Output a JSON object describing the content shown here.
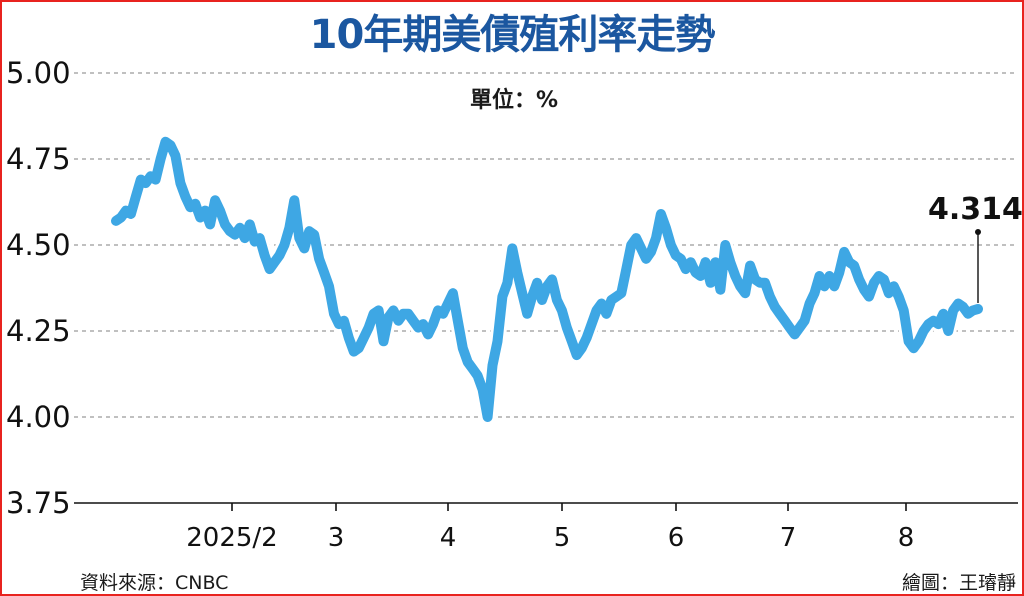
{
  "title": "10年期美債殖利率走勢",
  "unit_label": "單位：%",
  "source": "資料來源：CNBC",
  "credit": "繪圖：王璿靜",
  "colors": {
    "line": "#3ea7e4",
    "border": "#e8231f",
    "title": "#1b57a0",
    "grid": "#9a9a9a"
  },
  "chart_data": {
    "type": "line",
    "title": "10年期美債殖利率走勢",
    "ylabel": "",
    "xlabel": "",
    "ylim": [
      3.75,
      5.0
    ],
    "y_ticks": [
      "5.00",
      "4.75",
      "4.50",
      "4.25",
      "4.00",
      "3.75"
    ],
    "x_ticks": [
      "2025/2",
      "3",
      "4",
      "5",
      "6",
      "7",
      "8"
    ],
    "grid": true,
    "annotation": {
      "label": "4.314",
      "value": 4.314
    },
    "series": [
      {
        "values": [
          4.57,
          4.58,
          4.6,
          4.59,
          4.64,
          4.69,
          4.68,
          4.7,
          4.69,
          4.75,
          4.8,
          4.79,
          4.76,
          4.68,
          4.64,
          4.61,
          4.62,
          4.58,
          4.6,
          4.56,
          4.63,
          4.6,
          4.56,
          4.54,
          4.53,
          4.55,
          4.52,
          4.56,
          4.51,
          4.52,
          4.47,
          4.43,
          4.45,
          4.47,
          4.5,
          4.55,
          4.63,
          4.52,
          4.49,
          4.54,
          4.53,
          4.46,
          4.42,
          4.38,
          4.3,
          4.27,
          4.28,
          4.23,
          4.19,
          4.2,
          4.23,
          4.26,
          4.3,
          4.31,
          4.22,
          4.29,
          4.31,
          4.28,
          4.3,
          4.3,
          4.28,
          4.26,
          4.27,
          4.24,
          4.27,
          4.31,
          4.3,
          4.33,
          4.36,
          4.28,
          4.2,
          4.16,
          4.14,
          4.12,
          4.08,
          4.0,
          4.15,
          4.22,
          4.35,
          4.39,
          4.49,
          4.42,
          4.36,
          4.3,
          4.35,
          4.39,
          4.34,
          4.38,
          4.4,
          4.34,
          4.31,
          4.26,
          4.22,
          4.18,
          4.2,
          4.23,
          4.27,
          4.31,
          4.33,
          4.3,
          4.34,
          4.35,
          4.36,
          4.43,
          4.5,
          4.52,
          4.49,
          4.46,
          4.48,
          4.52,
          4.59,
          4.55,
          4.5,
          4.47,
          4.46,
          4.43,
          4.45,
          4.42,
          4.41,
          4.45,
          4.39,
          4.45,
          4.37,
          4.5,
          4.45,
          4.41,
          4.38,
          4.36,
          4.44,
          4.4,
          4.39,
          4.39,
          4.35,
          4.32,
          4.3,
          4.28,
          4.26,
          4.24,
          4.26,
          4.28,
          4.33,
          4.36,
          4.41,
          4.38,
          4.41,
          4.38,
          4.42,
          4.48,
          4.45,
          4.44,
          4.4,
          4.37,
          4.35,
          4.39,
          4.41,
          4.4,
          4.36,
          4.38,
          4.35,
          4.31,
          4.22,
          4.2,
          4.22,
          4.25,
          4.27,
          4.28,
          4.27,
          4.3,
          4.25,
          4.31,
          4.33,
          4.32,
          4.3,
          4.31,
          4.314
        ]
      }
    ]
  }
}
